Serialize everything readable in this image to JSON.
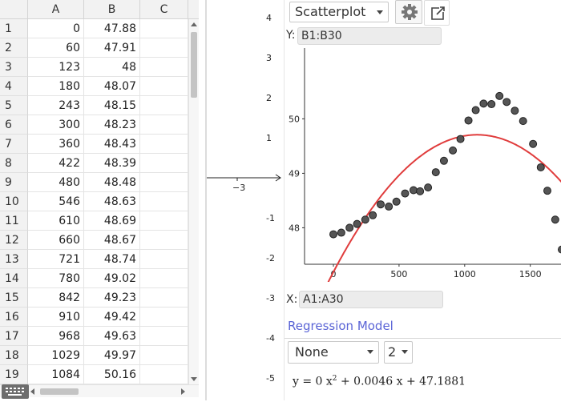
{
  "spreadsheet": {
    "columns": [
      "A",
      "B",
      "C"
    ],
    "rows": [
      {
        "n": "1",
        "a": "0",
        "b": "47.88"
      },
      {
        "n": "2",
        "a": "60",
        "b": "47.91"
      },
      {
        "n": "3",
        "a": "123",
        "b": "48"
      },
      {
        "n": "4",
        "a": "180",
        "b": "48.07"
      },
      {
        "n": "5",
        "a": "243",
        "b": "48.15"
      },
      {
        "n": "6",
        "a": "300",
        "b": "48.23"
      },
      {
        "n": "7",
        "a": "360",
        "b": "48.43"
      },
      {
        "n": "8",
        "a": "422",
        "b": "48.39"
      },
      {
        "n": "9",
        "a": "480",
        "b": "48.48"
      },
      {
        "n": "10",
        "a": "546",
        "b": "48.63"
      },
      {
        "n": "11",
        "a": "610",
        "b": "48.69"
      },
      {
        "n": "12",
        "a": "660",
        "b": "48.67"
      },
      {
        "n": "13",
        "a": "721",
        "b": "48.74"
      },
      {
        "n": "14",
        "a": "780",
        "b": "49.02"
      },
      {
        "n": "15",
        "a": "842",
        "b": "49.23"
      },
      {
        "n": "16",
        "a": "910",
        "b": "49.42"
      },
      {
        "n": "17",
        "a": "968",
        "b": "49.63"
      },
      {
        "n": "18",
        "a": "1029",
        "b": "49.97"
      },
      {
        "n": "19",
        "a": "1084",
        "b": "50.16"
      }
    ]
  },
  "graphics_view": {
    "y_ticks": [
      "4",
      "3",
      "2",
      "1",
      "-1",
      "-2",
      "-3",
      "-4",
      "-5"
    ],
    "x_tick": "−3"
  },
  "panel": {
    "plot_type": "Scatterplot",
    "y_label": "Y:",
    "y_range": "B1:B30",
    "x_label": "X:",
    "x_range": "A1:A30",
    "regression_title": "Regression Model",
    "model": "None",
    "degree": "2",
    "equation": {
      "lhs": "y = 0 x",
      "exp": "2",
      "rhs": " + 0.0046 x + 47.1881"
    },
    "colors": {
      "curve": "#e03c3c",
      "points": "#555555",
      "accent": "#5a64d6"
    }
  },
  "chart_data": {
    "type": "scatter",
    "x_ticks": [
      "0",
      "500",
      "1000",
      "1500"
    ],
    "y_ticks": [
      "48",
      "49",
      "50"
    ],
    "xlim": [
      -220,
      1740
    ],
    "ylim": [
      47.33,
      51.3
    ],
    "points": [
      [
        0,
        47.88
      ],
      [
        60,
        47.91
      ],
      [
        123,
        48
      ],
      [
        180,
        48.07
      ],
      [
        243,
        48.15
      ],
      [
        300,
        48.23
      ],
      [
        360,
        48.43
      ],
      [
        422,
        48.39
      ],
      [
        480,
        48.48
      ],
      [
        546,
        48.63
      ],
      [
        610,
        48.69
      ],
      [
        660,
        48.67
      ],
      [
        721,
        48.74
      ],
      [
        780,
        49.02
      ],
      [
        842,
        49.23
      ],
      [
        910,
        49.42
      ],
      [
        968,
        49.63
      ],
      [
        1029,
        49.97
      ],
      [
        1084,
        50.16
      ],
      [
        1144,
        50.28
      ],
      [
        1204,
        50.27
      ],
      [
        1265,
        50.42
      ],
      [
        1320,
        50.31
      ],
      [
        1382,
        50.15
      ],
      [
        1445,
        49.96
      ],
      [
        1521,
        49.54
      ],
      [
        1580,
        49.11
      ],
      [
        1630,
        48.68
      ],
      [
        1690,
        48.15
      ],
      [
        1740,
        47.6
      ]
    ],
    "regression": {
      "a": -2.1e-06,
      "b": 0.0046,
      "c": 47.1881
    }
  }
}
